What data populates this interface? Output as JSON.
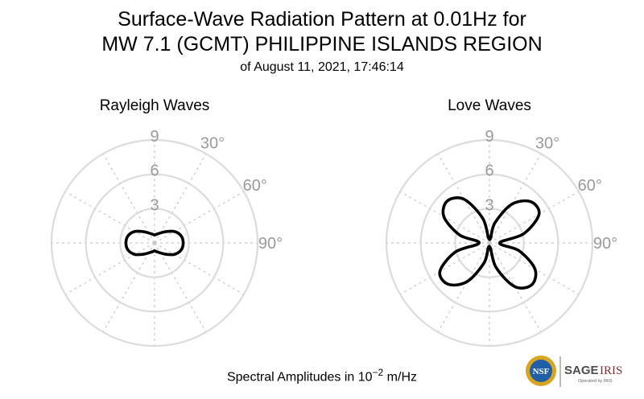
{
  "header": {
    "title_line1": "Surface-Wave Radiation Pattern at 0.01Hz for",
    "title_line2": "MW 7.1 (GCMT) PHILIPPINE ISLANDS REGION",
    "subtitle": "of August 11, 2021, 17:46:14"
  },
  "chart_data": [
    {
      "type": "polar",
      "title": "Rayleigh Waves",
      "r_ticks": [
        "3",
        "6",
        "9"
      ],
      "r_max": 9,
      "angle_ticks": [
        "30°",
        "60°",
        "90°"
      ],
      "angle_unit": "deg",
      "grid": true,
      "series": [
        {
          "theta": [
            0,
            15,
            30,
            45,
            60,
            75,
            90,
            105,
            120,
            135,
            150,
            165,
            180,
            195,
            210,
            225,
            240,
            255,
            270,
            285,
            300,
            315,
            330,
            345
          ],
          "r": [
            0.7,
            0.8,
            1.0,
            1.4,
            2.0,
            2.4,
            2.5,
            2.4,
            2.0,
            1.4,
            1.0,
            0.8,
            0.7,
            0.8,
            1.0,
            1.4,
            2.0,
            2.4,
            2.5,
            2.4,
            2.0,
            1.4,
            1.0,
            0.8
          ]
        }
      ]
    },
    {
      "type": "polar",
      "title": "Love Waves",
      "r_ticks": [
        "3",
        "6",
        "9"
      ],
      "r_max": 9,
      "angle_ticks": [
        "30°",
        "60°",
        "90°"
      ],
      "angle_unit": "deg",
      "grid": true,
      "series": [
        {
          "theta": [
            0,
            15,
            30,
            45,
            60,
            75,
            90,
            105,
            120,
            135,
            150,
            165,
            180,
            195,
            210,
            225,
            240,
            255,
            270,
            285,
            300,
            315,
            330,
            345
          ],
          "r": [
            0.3,
            1.8,
            3.9,
            5.1,
            5.0,
            3.1,
            0.9,
            2.7,
            4.6,
            5.2,
            4.4,
            2.2,
            0.3,
            1.8,
            3.9,
            5.1,
            5.0,
            3.1,
            0.9,
            2.7,
            4.6,
            5.2,
            4.4,
            2.2
          ]
        }
      ]
    }
  ],
  "caption": {
    "text": "Spectral Amplitudes in ",
    "base": "10",
    "exponent": "−2",
    "unit": " m/Hz"
  },
  "logos": {
    "nsf": "NSF",
    "sage": "SAGE",
    "iris": "IRIS",
    "operated_by": "Operated by IRIS",
    "colors": {
      "nsf_blue": "#1f5fa8",
      "nsf_gold": "#d9a521",
      "sage_gray": "#4d4d4d",
      "iris_red": "#7d2f36"
    }
  }
}
